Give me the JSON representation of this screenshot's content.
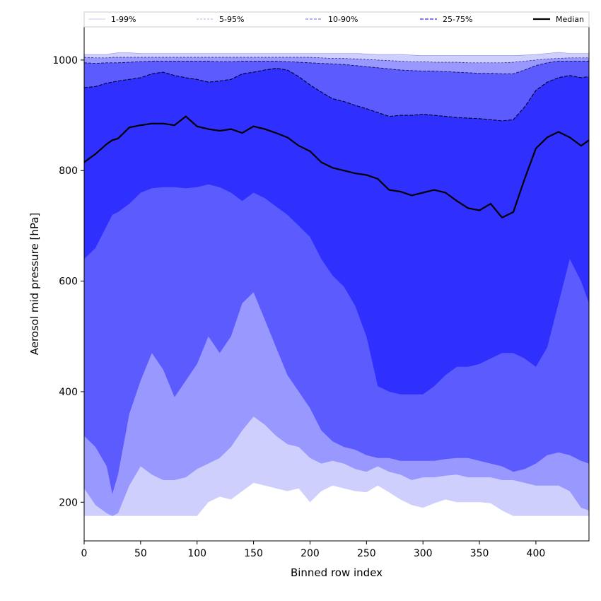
{
  "chart_data": {
    "type": "area",
    "xlabel": "Binned row index",
    "ylabel": "Aerosol mid pressure [hPa]",
    "xlim": [
      0,
      447
    ],
    "ylim": [
      130,
      1060
    ],
    "y_inverted": false,
    "grid": false,
    "legend_placement": "top, above plot (horizontal)",
    "x_ticks": [
      0,
      50,
      100,
      150,
      200,
      250,
      300,
      350,
      400
    ],
    "y_ticks": [
      200,
      400,
      600,
      800,
      1000
    ],
    "colors": {
      "band_1_99": "#cfcffd",
      "band_5_95": "#9898fe",
      "band_10_90": "#5b5bfe",
      "band_25_75": "#2f2ffe",
      "median": "#000000"
    },
    "legend": [
      {
        "label": "1-99%",
        "style": "thin-solid"
      },
      {
        "label": "5-95%",
        "style": "thin-dashed"
      },
      {
        "label": "10-90%",
        "style": "dashed"
      },
      {
        "label": "25-75%",
        "style": "dashed-bold"
      },
      {
        "label": "Median",
        "style": "solid"
      }
    ],
    "x": [
      0,
      10,
      20,
      25,
      30,
      40,
      50,
      60,
      70,
      80,
      90,
      100,
      110,
      120,
      130,
      140,
      150,
      160,
      170,
      180,
      190,
      200,
      210,
      220,
      230,
      240,
      250,
      260,
      270,
      280,
      290,
      300,
      310,
      320,
      330,
      340,
      350,
      360,
      370,
      380,
      390,
      400,
      410,
      420,
      430,
      440,
      447
    ],
    "series": [
      {
        "name": "1-99%",
        "role": "p01",
        "values": [
          175,
          175,
          175,
          175,
          175,
          175,
          175,
          175,
          175,
          175,
          175,
          175,
          200,
          210,
          205,
          220,
          235,
          230,
          225,
          220,
          225,
          200,
          220,
          230,
          225,
          220,
          218,
          230,
          218,
          205,
          195,
          190,
          198,
          205,
          200,
          200,
          200,
          198,
          185,
          175,
          175,
          175,
          175,
          175,
          175,
          175,
          175
        ]
      },
      {
        "name": "5-95%",
        "role": "p05",
        "values": [
          225,
          195,
          180,
          175,
          180,
          230,
          265,
          250,
          240,
          240,
          245,
          260,
          270,
          280,
          300,
          330,
          355,
          340,
          320,
          305,
          300,
          280,
          270,
          275,
          270,
          260,
          255,
          265,
          255,
          250,
          240,
          245,
          245,
          248,
          250,
          245,
          245,
          245,
          240,
          240,
          235,
          230,
          230,
          230,
          220,
          190,
          185
        ]
      },
      {
        "name": "10-90%",
        "role": "p10",
        "values": [
          320,
          300,
          265,
          215,
          250,
          360,
          420,
          470,
          440,
          390,
          420,
          450,
          500,
          470,
          500,
          560,
          580,
          530,
          480,
          430,
          400,
          370,
          330,
          310,
          300,
          295,
          285,
          280,
          280,
          275,
          275,
          275,
          275,
          278,
          280,
          280,
          275,
          270,
          265,
          255,
          260,
          270,
          285,
          290,
          285,
          275,
          270
        ]
      },
      {
        "name": "25-75%",
        "role": "p25",
        "values": [
          640,
          660,
          700,
          720,
          725,
          740,
          760,
          768,
          770,
          770,
          768,
          770,
          775,
          770,
          760,
          745,
          760,
          750,
          735,
          720,
          700,
          680,
          640,
          610,
          590,
          555,
          500,
          410,
          400,
          395,
          395,
          395,
          410,
          430,
          445,
          445,
          450,
          460,
          470,
          470,
          460,
          445,
          480,
          560,
          640,
          600,
          560
        ]
      },
      {
        "name": "Median",
        "role": "median",
        "values": [
          815,
          830,
          848,
          855,
          858,
          878,
          882,
          885,
          885,
          882,
          898,
          880,
          875,
          872,
          875,
          868,
          880,
          875,
          868,
          860,
          845,
          835,
          815,
          805,
          800,
          795,
          792,
          785,
          765,
          762,
          755,
          760,
          765,
          760,
          745,
          732,
          728,
          740,
          715,
          725,
          785,
          840,
          860,
          870,
          860,
          845,
          855
        ]
      },
      {
        "name": "25-75%",
        "role": "p75",
        "values": [
          950,
          952,
          958,
          960,
          962,
          965,
          968,
          975,
          978,
          972,
          968,
          965,
          960,
          962,
          965,
          975,
          978,
          982,
          985,
          982,
          970,
          955,
          942,
          930,
          925,
          918,
          912,
          905,
          898,
          900,
          900,
          902,
          900,
          898,
          896,
          895,
          894,
          892,
          890,
          892,
          915,
          945,
          960,
          968,
          972,
          968,
          970
        ]
      },
      {
        "name": "10-90%",
        "role": "p90",
        "values": [
          995,
          994,
          995,
          995,
          995,
          996,
          997,
          998,
          998,
          998,
          998,
          998,
          998,
          997,
          997,
          998,
          998,
          998,
          998,
          997,
          996,
          995,
          994,
          993,
          992,
          990,
          988,
          986,
          984,
          982,
          981,
          980,
          980,
          979,
          978,
          977,
          976,
          976,
          975,
          975,
          982,
          990,
          995,
          998,
          998,
          998,
          998
        ]
      },
      {
        "name": "5-95%",
        "role": "p95",
        "values": [
          1005,
          1004,
          1004,
          1005,
          1005,
          1005,
          1005,
          1005,
          1005,
          1005,
          1005,
          1005,
          1005,
          1005,
          1005,
          1005,
          1005,
          1005,
          1005,
          1005,
          1005,
          1005,
          1004,
          1003,
          1003,
          1002,
          1001,
          1000,
          999,
          998,
          997,
          997,
          996,
          996,
          996,
          995,
          995,
          995,
          995,
          996,
          998,
          1000,
          1002,
          1003,
          1004,
          1004,
          1004
        ]
      },
      {
        "name": "1-99%",
        "role": "p99",
        "values": [
          1010,
          1010,
          1010,
          1012,
          1013,
          1013,
          1012,
          1012,
          1012,
          1012,
          1012,
          1012,
          1012,
          1012,
          1012,
          1012,
          1012,
          1012,
          1012,
          1012,
          1012,
          1012,
          1012,
          1012,
          1012,
          1012,
          1011,
          1010,
          1010,
          1010,
          1009,
          1008,
          1008,
          1008,
          1008,
          1008,
          1008,
          1008,
          1008,
          1008,
          1009,
          1010,
          1012,
          1014,
          1012,
          1012,
          1012
        ]
      }
    ]
  }
}
